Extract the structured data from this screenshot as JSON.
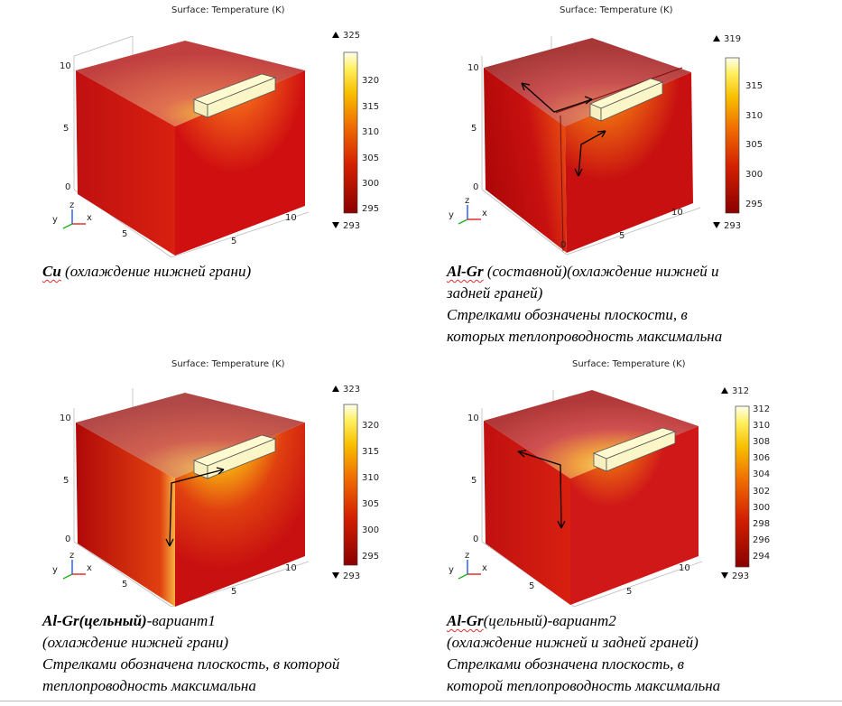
{
  "panels": [
    {
      "title": "Surface: Temperature (K)",
      "cb_max": "325",
      "cb_min": "293",
      "cb_ticks": [
        "320",
        "315",
        "310",
        "305",
        "300",
        "295"
      ],
      "axis_z": [
        "10",
        "5",
        "0"
      ],
      "axis_x": [
        "10",
        "5"
      ],
      "axis_y": [
        "5"
      ],
      "caption": {
        "name": "Cu",
        "lines": [
          "(охлаждение  нижней грани)"
        ]
      }
    },
    {
      "title": "Surface: Temperature (K)",
      "cb_max": "319",
      "cb_min": "293",
      "cb_ticks": [
        "315",
        "310",
        "305",
        "300",
        "295"
      ],
      "axis_z": [
        "10",
        "5",
        "0"
      ],
      "axis_x": [
        "10",
        "5"
      ],
      "axis_y": [
        "0"
      ],
      "caption": {
        "name": "Al-Gr",
        "lines": [
          " (составной)(охлаждение  нижней и",
          "задней граней)",
          "Стрелками обозначены плоскости, в",
          "которых теплопроводность максимальна"
        ]
      }
    },
    {
      "title": "Surface: Temperature (K)",
      "cb_max": "323",
      "cb_min": "293",
      "cb_ticks": [
        "320",
        "315",
        "310",
        "305",
        "300",
        "295"
      ],
      "axis_z": [
        "10",
        "5",
        "0"
      ],
      "axis_x": [
        "10",
        "5"
      ],
      "axis_y": [
        "5"
      ],
      "caption": {
        "name": "Al-Gr(цельный)",
        "lines": [
          "-вариант1",
          "(охлаждение нижней грани)",
          "Стрелками обозначена плоскость, в которой",
          "теплопроводность максимальна"
        ]
      }
    },
    {
      "title": "Surface: Temperature (K)",
      "cb_max": "312",
      "cb_min": "293",
      "cb_ticks": [
        "312",
        "310",
        "308",
        "306",
        "304",
        "302",
        "300",
        "298",
        "296",
        "294"
      ],
      "axis_z": [
        "10",
        "5",
        "0"
      ],
      "axis_x": [
        "10",
        "5"
      ],
      "axis_y": [
        "5"
      ],
      "caption": {
        "name": "Al-Gr",
        "lines": [
          "(цельный)-вариант2",
          "(охлаждение нижней  и задней граней)",
          "Стрелками обозначена плоскость, в",
          "которой теплопроводность максимальна"
        ]
      }
    }
  ],
  "triad": {
    "x": "x",
    "y": "y",
    "z": "z"
  },
  "colors": {
    "hot": "#fffbe0",
    "mid": "#f0b000",
    "warm": "#e05010",
    "cold": "#a00000"
  },
  "icons": [
    "up-triangle-icon",
    "down-triangle-icon",
    "arrow-icon"
  ]
}
